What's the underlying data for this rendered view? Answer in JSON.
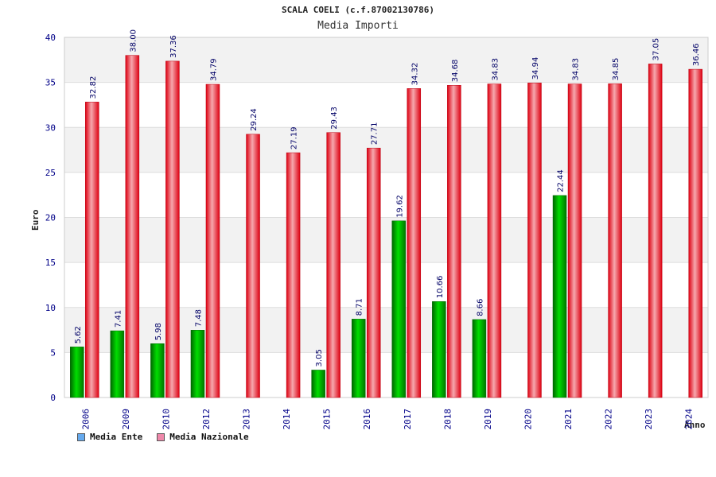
{
  "chart_data": {
    "type": "bar",
    "title": "SCALA COELI (c.f.87002130786)",
    "subtitle": "Media Importi",
    "xlabel": "Anno",
    "ylabel": "Euro",
    "ylim": [
      0,
      40
    ],
    "yticks": [
      0,
      5,
      10,
      15,
      20,
      25,
      30,
      35,
      40
    ],
    "grid": true,
    "legend_position": "bottom-left",
    "categories": [
      "2006",
      "2009",
      "2010",
      "2012",
      "2013",
      "2014",
      "2015",
      "2016",
      "2017",
      "2018",
      "2019",
      "2020",
      "2021",
      "2022",
      "2023",
      "2024"
    ],
    "series": [
      {
        "name": "Media Ente",
        "color": "#00aa00",
        "legend_color": "#66aaee",
        "values": [
          5.62,
          7.41,
          5.98,
          7.48,
          null,
          null,
          3.05,
          8.71,
          19.62,
          10.66,
          8.66,
          null,
          22.44,
          null,
          null,
          null
        ],
        "labels": [
          "5.62",
          "7.41",
          "5.98",
          "7.48",
          null,
          null,
          "3.05",
          "8.71",
          "19.62",
          "10.66",
          "8.66",
          null,
          "22.44",
          null,
          null,
          null
        ]
      },
      {
        "name": "Media Nazionale",
        "color": "#ee1122",
        "legend_color": "#ee88aa",
        "values": [
          32.82,
          38.0,
          37.36,
          34.79,
          29.24,
          27.19,
          29.43,
          27.71,
          34.32,
          34.68,
          34.83,
          34.94,
          34.83,
          34.85,
          37.05,
          36.46
        ],
        "labels": [
          "32.82",
          "38.00",
          "37.36",
          "34.79",
          "29.24",
          "27.19",
          "29.43",
          "27.71",
          "34.32",
          "34.68",
          "34.83",
          "34.94",
          "34.83",
          "34.85",
          "37.05",
          "36.46"
        ]
      }
    ]
  }
}
